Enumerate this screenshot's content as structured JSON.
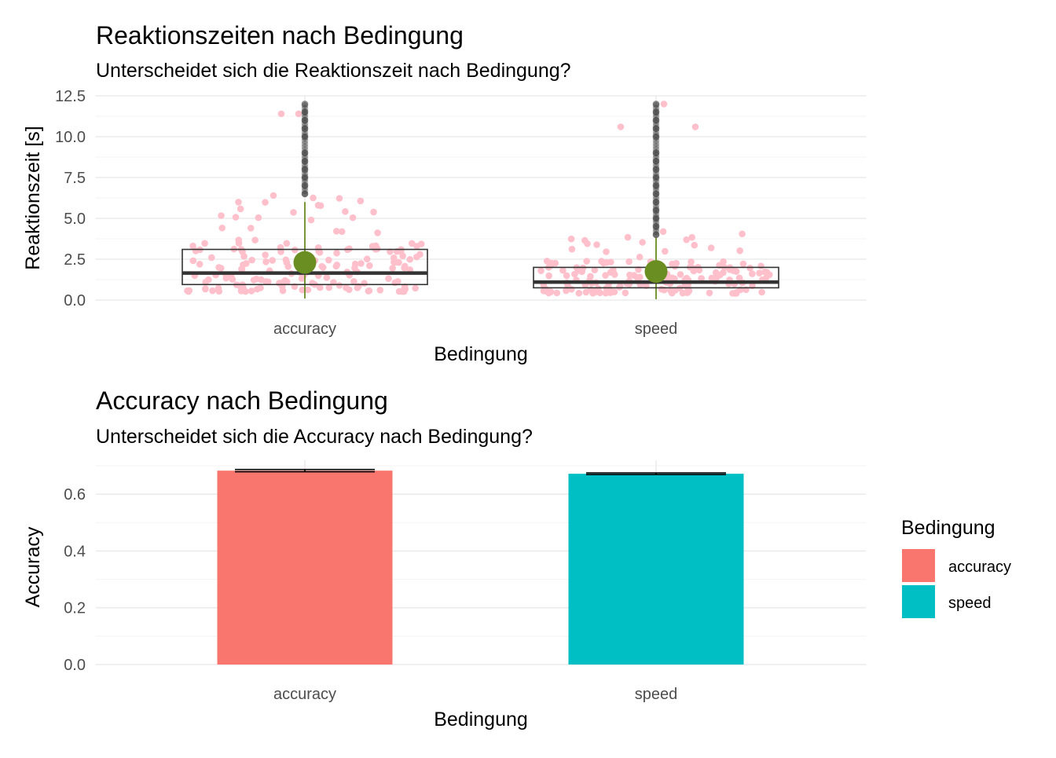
{
  "chart_data": [
    {
      "type": "boxplot",
      "title": "Reaktionszeiten nach Bedingung",
      "subtitle": "Unterscheidet sich die Reaktionszeit nach Bedingung?",
      "xlabel": "Bedingung",
      "ylabel": "Reaktionszeit [s]",
      "categories": [
        "accuracy",
        "speed"
      ],
      "ylim": [
        0,
        12.5
      ],
      "yticks": [
        "0.0",
        "2.5",
        "5.0",
        "7.5",
        "10.0",
        "12.5"
      ],
      "grid": true,
      "colors": {
        "jitter": "#ffc0cb",
        "mean": "#6b8e23",
        "whisker": "#6b8e23",
        "box": "#333333",
        "outlier": "#333333"
      },
      "boxes": [
        {
          "category": "accuracy",
          "q1": 0.95,
          "median": 1.65,
          "q3": 3.1,
          "whisker_low": 0.1,
          "whisker_high": 6.0,
          "mean": 2.3,
          "outliers": [
            6.5,
            7.0,
            7.5,
            8.0,
            8.5,
            9.0,
            10.0,
            10.5,
            11.0,
            11.5,
            12.0
          ]
        },
        {
          "category": "speed",
          "q1": 0.75,
          "median": 1.1,
          "q3": 2.0,
          "whisker_low": 0.05,
          "whisker_high": 3.8,
          "mean": 1.75,
          "outliers": [
            4.0,
            4.5,
            5.0,
            5.5,
            6.0,
            6.5,
            7.0,
            7.5,
            8.0,
            8.5,
            9.0,
            10.0,
            10.5,
            11.0,
            11.5,
            12.0
          ]
        }
      ]
    },
    {
      "type": "bar",
      "title": "Accuracy nach Bedingung",
      "subtitle": "Unterscheidet sich die Accuracy nach Bedingung?",
      "xlabel": "Bedingung",
      "ylabel": "Accuracy",
      "categories": [
        "accuracy",
        "speed"
      ],
      "values": [
        0.683,
        0.672
      ],
      "errors": [
        0.004,
        0.003
      ],
      "colors": [
        "#f8766d",
        "#00bfc4"
      ],
      "ylim": [
        0,
        0.7
      ],
      "yticks": [
        "0.0",
        "0.2",
        "0.4",
        "0.6"
      ],
      "grid": true,
      "legend": {
        "title": "Bedingung",
        "placement": "right",
        "entries": [
          "accuracy",
          "speed"
        ]
      }
    }
  ]
}
